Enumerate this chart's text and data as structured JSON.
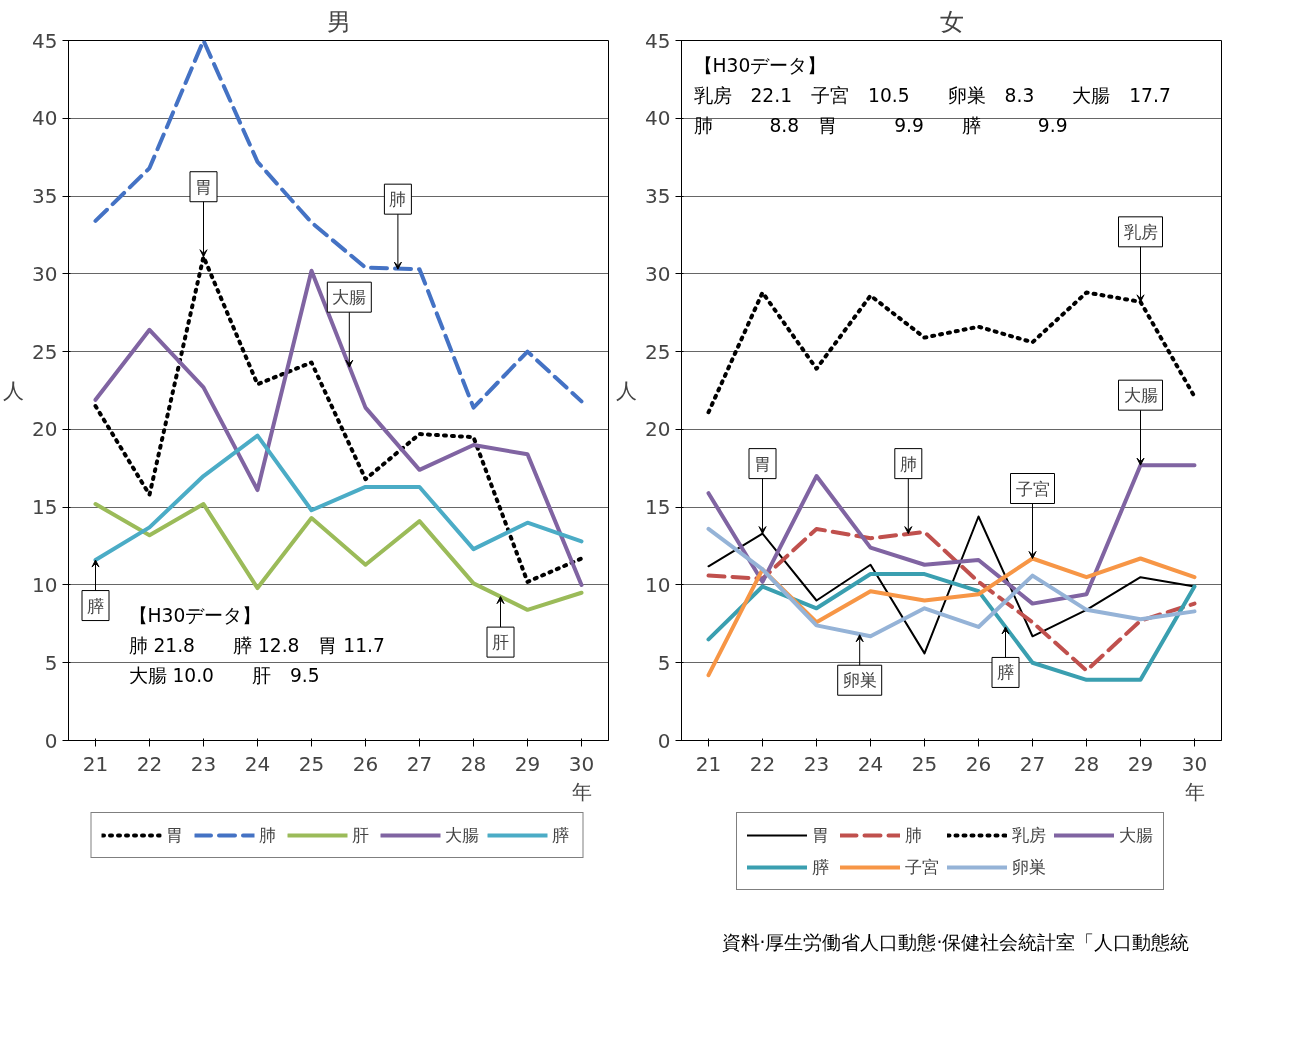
{
  "chart_data": [
    {
      "type": "line",
      "title": "男",
      "ylabel": "人",
      "x": [
        21,
        22,
        23,
        24,
        25,
        26,
        27,
        28,
        29,
        30
      ],
      "xlim": [
        20.5,
        30.5
      ],
      "xticks": [
        21,
        22,
        23,
        24,
        25,
        26,
        27,
        28,
        29,
        {
          "value": 30,
          "label": "30\n年"
        }
      ],
      "ylim": [
        0,
        45
      ],
      "yticks": [
        0,
        5,
        10,
        15,
        20,
        25,
        30,
        35,
        40,
        45
      ],
      "grid": "y",
      "legend": "bottom",
      "series": [
        {
          "name": "胃",
          "color": "#000000",
          "line_style": "dotted",
          "values": [
            21.5,
            15.8,
            31.1,
            22.9,
            24.3,
            16.8,
            19.7,
            19.5,
            10.2,
            11.7
          ]
        },
        {
          "name": "肺",
          "color": "#4472c4",
          "line_style": "dashed",
          "values": [
            33.4,
            36.8,
            45.0,
            37.2,
            33.3,
            30.4,
            30.3,
            21.4,
            25.0,
            21.8
          ]
        },
        {
          "name": "肝",
          "color": "#9bbb59",
          "line_style": "solid",
          "values": [
            15.2,
            13.2,
            15.2,
            9.8,
            14.3,
            11.3,
            14.1,
            10.1,
            8.4,
            9.5
          ]
        },
        {
          "name": "大腸",
          "color": "#8064a2",
          "line_style": "solid",
          "values": [
            21.9,
            26.4,
            22.7,
            16.1,
            30.2,
            21.4,
            17.4,
            19.0,
            18.4,
            10.0
          ]
        },
        {
          "name": "膵",
          "color": "#4bacc6",
          "line_style": "solid",
          "values": [
            11.6,
            13.7,
            17.0,
            19.6,
            14.8,
            16.3,
            16.3,
            12.3,
            14.0,
            12.8
          ]
        }
      ],
      "annotations": [
        "【H30データ】",
        "肺 21.8　　膵 12.8　胃 11.7",
        "大腸 10.0　　肝　9.5",
        {
          "text": "胃",
          "x": 23,
          "y": 31.1
        },
        {
          "text": "肺",
          "x": 26.6,
          "y": 30.3
        },
        {
          "text": "大腸",
          "x": 25.7,
          "y": 24.0
        },
        {
          "text": "膵",
          "x": 21,
          "y": 11.6
        },
        {
          "text": "肝",
          "x": 28.5,
          "y": 9.25
        }
      ]
    },
    {
      "type": "line",
      "title": "女",
      "ylabel": "人",
      "x": [
        21,
        22,
        23,
        24,
        25,
        26,
        27,
        28,
        29,
        30
      ],
      "xlim": [
        20.5,
        30.5
      ],
      "xticks": [
        21,
        22,
        23,
        24,
        25,
        26,
        27,
        28,
        29,
        {
          "value": 30,
          "label": "30\n年"
        }
      ],
      "ylim": [
        0,
        45
      ],
      "yticks": [
        0,
        5,
        10,
        15,
        20,
        25,
        30,
        35,
        40,
        45
      ],
      "grid": "y",
      "legend": "bottom",
      "series": [
        {
          "name": "胃",
          "color": "#000000",
          "line_style": "solid",
          "values": [
            11.2,
            13.3,
            9.0,
            11.3,
            5.6,
            14.4,
            6.7,
            8.4,
            10.5,
            9.9
          ]
        },
        {
          "name": "肺",
          "color": "#c0504d",
          "line_style": "dashed",
          "values": [
            10.6,
            10.4,
            13.6,
            13.0,
            13.4,
            10.2,
            7.6,
            4.5,
            7.7,
            8.8
          ]
        },
        {
          "name": "乳房",
          "color": "#000000",
          "line_style": "dotted",
          "values": [
            21.1,
            28.8,
            23.9,
            28.6,
            25.9,
            26.6,
            25.6,
            28.8,
            28.2,
            22.1
          ]
        },
        {
          "name": "大腸",
          "color": "#8064a2",
          "line_style": "solid",
          "values": [
            15.9,
            10.2,
            17.0,
            12.4,
            11.3,
            11.6,
            8.8,
            9.4,
            17.7,
            17.7
          ]
        },
        {
          "name": "膵",
          "color": "#3a9fb0",
          "line_style": "solid",
          "values": [
            6.5,
            9.9,
            8.5,
            10.7,
            10.7,
            9.6,
            5.0,
            3.9,
            3.9,
            9.9
          ]
        },
        {
          "name": "子宮",
          "color": "#f79646",
          "line_style": "solid",
          "values": [
            4.2,
            11.0,
            7.6,
            9.6,
            9.0,
            9.4,
            11.7,
            10.5,
            11.7,
            10.5
          ]
        },
        {
          "name": "卵巣",
          "color": "#95b3d7",
          "line_style": "solid",
          "values": [
            13.6,
            11.0,
            7.4,
            6.7,
            8.5,
            7.3,
            10.6,
            8.4,
            7.8,
            8.3
          ]
        }
      ],
      "annotations": [
        "【H30データ】",
        "乳房　22.1　子宮　10.5　　卵巣　8.3　　大腸　17.7",
        "肺　　　8.8　胃　　　9.9　　膵　　　9.9",
        {
          "text": "乳房",
          "x": 29,
          "y": 28.2
        },
        {
          "text": "大腸",
          "x": 29,
          "y": 17.7
        },
        {
          "text": "胃",
          "x": 22,
          "y": 13.3
        },
        {
          "text": "肺",
          "x": 24.7,
          "y": 13.3
        },
        {
          "text": "子宮",
          "x": 27,
          "y": 11.7
        },
        {
          "text": "卵巣",
          "x": 23.8,
          "y": 6.8
        },
        {
          "text": "膵",
          "x": 26.5,
          "y": 7.3
        },
        "資料·厚生労働省人口動態·保健社会統計室「人口動態統"
      ]
    }
  ]
}
